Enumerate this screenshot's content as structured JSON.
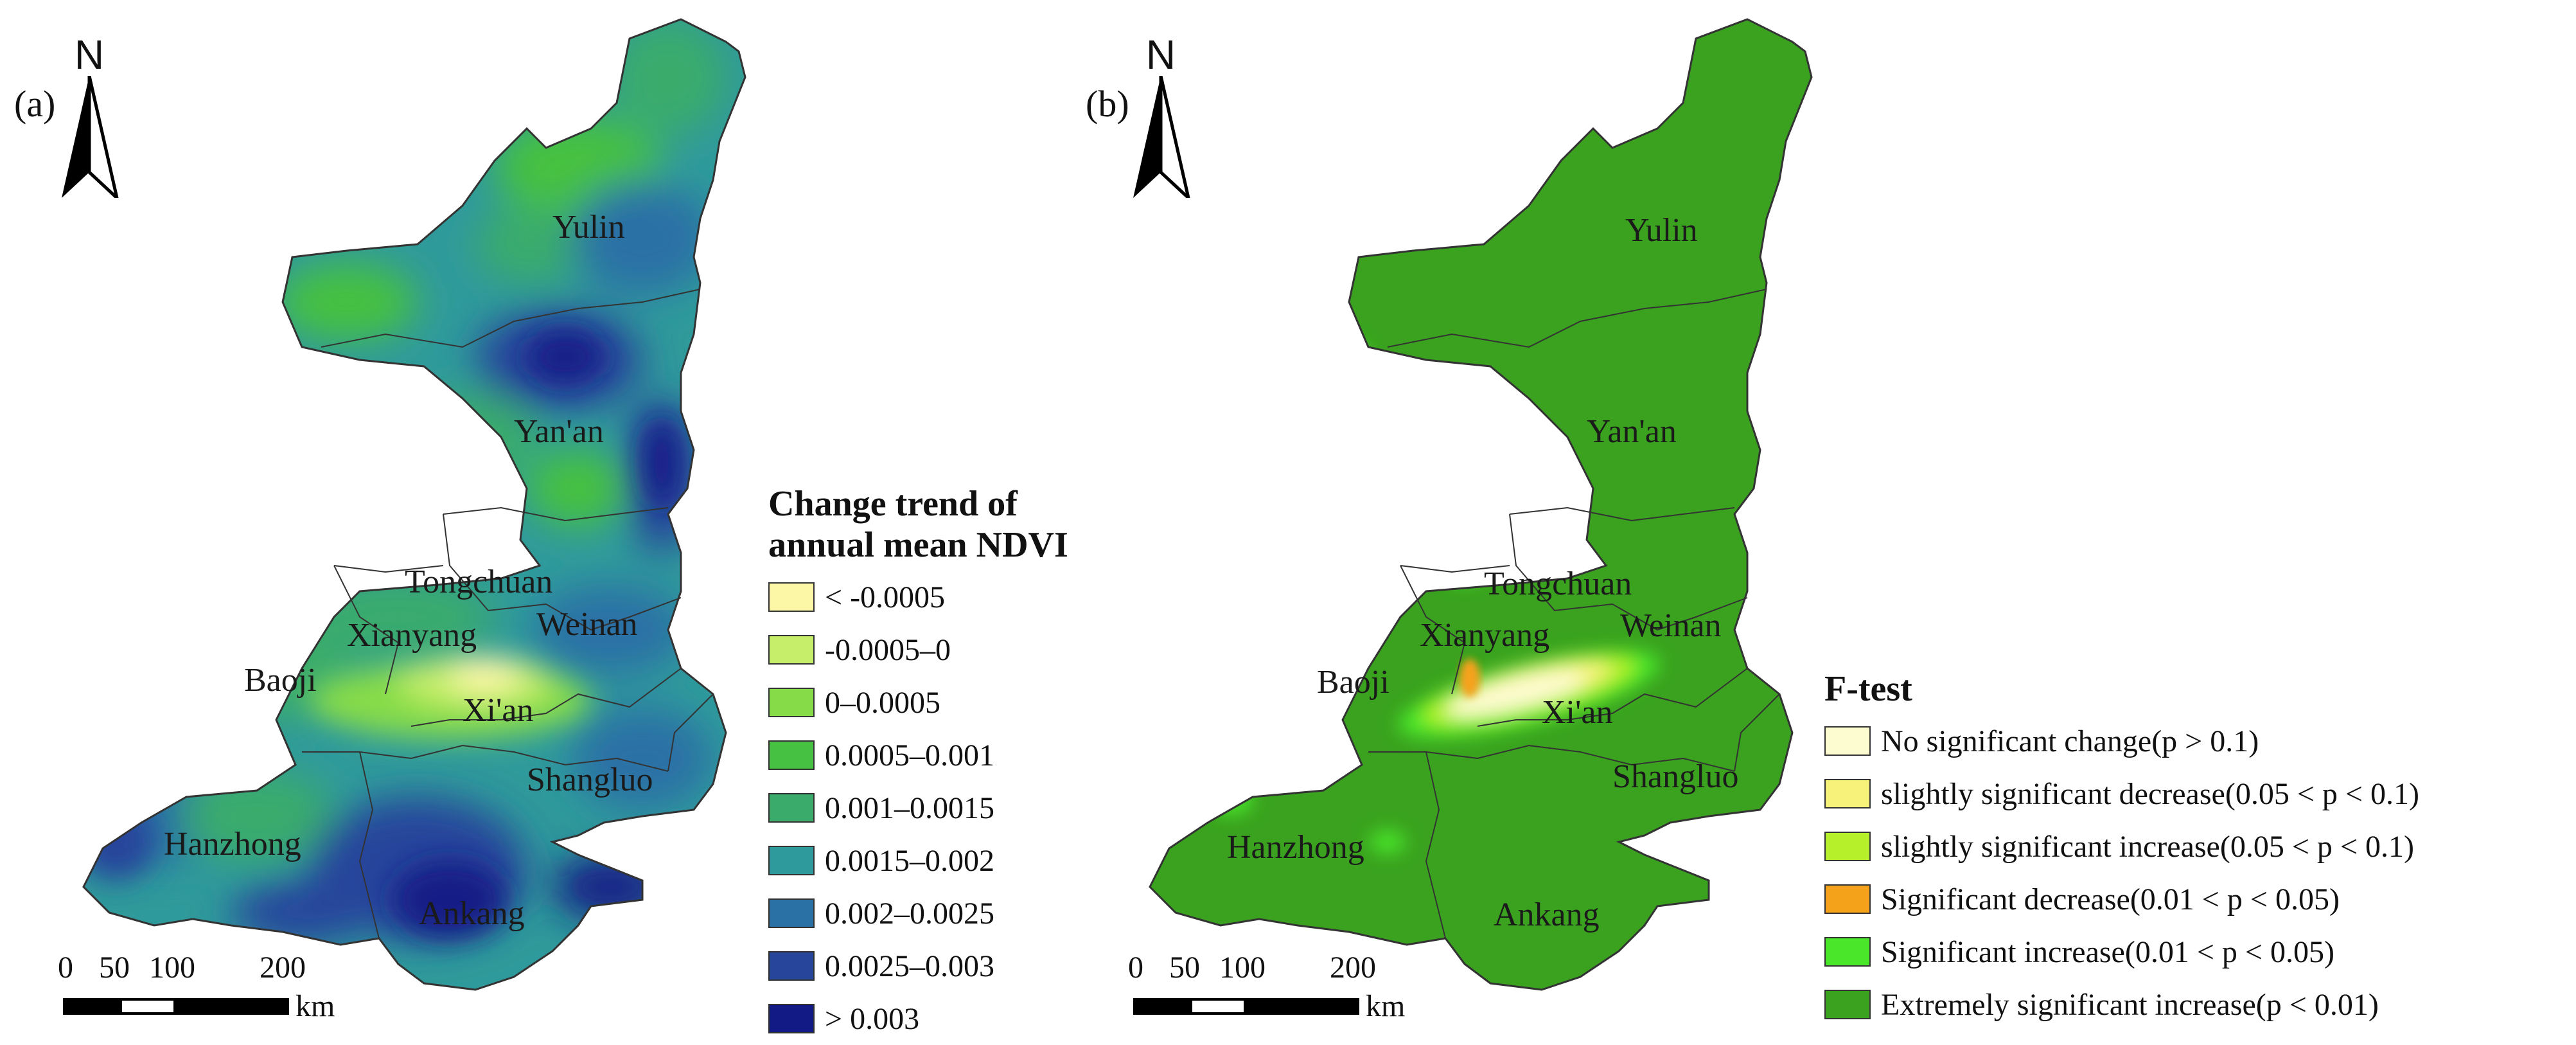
{
  "panel_a": {
    "label": "(a)",
    "north_label": "N",
    "cities": [
      "Yulin",
      "Yan'an",
      "Tongchuan",
      "Xianyang",
      "Weinan",
      "Baoji",
      "Xi'an",
      "Shangluo",
      "Hanzhong",
      "Ankang"
    ],
    "legend_title_line1": "Change trend of",
    "legend_title_line2": "annual mean NDVI",
    "legend": [
      {
        "label": "< -0.0005",
        "color": "#fbf7a6"
      },
      {
        "label": "-0.0005–0",
        "color": "#c6ee6b"
      },
      {
        "label": "0–0.0005",
        "color": "#86dc48"
      },
      {
        "label": "0.0005–0.001",
        "color": "#46c141"
      },
      {
        "label": "0.001–0.0015",
        "color": "#3bab6c"
      },
      {
        "label": "0.0015–0.002",
        "color": "#2f9a9b"
      },
      {
        "label": "0.002–0.0025",
        "color": "#2a71a6"
      },
      {
        "label": "0.0025–0.003",
        "color": "#27459b"
      },
      {
        "label": "> 0.003",
        "color": "#121a86"
      }
    ],
    "scale_ticks": [
      "0",
      "50",
      "100",
      "200"
    ],
    "scale_unit": "km"
  },
  "panel_b": {
    "label": "(b)",
    "north_label": "N",
    "cities": [
      "Yulin",
      "Yan'an",
      "Tongchuan",
      "Xianyang",
      "Weinan",
      "Baoji",
      "Xi'an",
      "Shangluo",
      "Hanzhong",
      "Ankang"
    ],
    "legend_title": "F-test",
    "legend": [
      {
        "label": "No significant change(p > 0.1)",
        "color": "#fdfbd0"
      },
      {
        "label": "slightly significant decrease(0.05 < p < 0.1)",
        "color": "#f7f27a"
      },
      {
        "label": "slightly significant increase(0.05 < p < 0.1)",
        "color": "#b6f02a"
      },
      {
        "label": "Significant decrease(0.01 < p < 0.05)",
        "color": "#f5a21b"
      },
      {
        "label": "Significant increase(0.01 < p < 0.05)",
        "color": "#4ae62a"
      },
      {
        "label": "Extremely significant increase(p < 0.01)",
        "color": "#3aa21f"
      }
    ],
    "scale_ticks": [
      "0",
      "50",
      "100",
      "200"
    ],
    "scale_unit": "km"
  }
}
